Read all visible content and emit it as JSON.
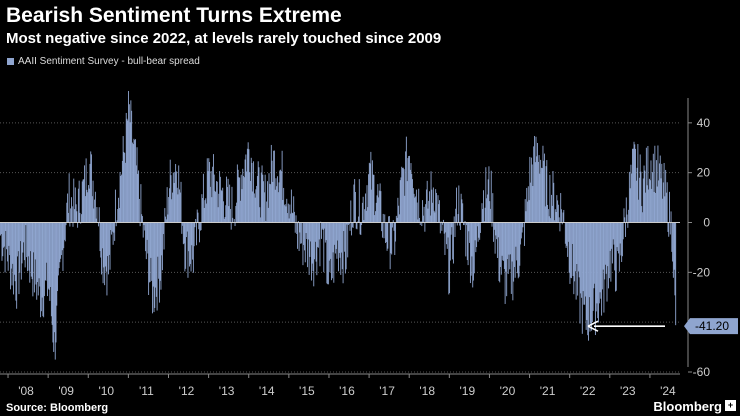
{
  "title": "Bearish Sentiment Turns Extreme",
  "subtitle": "Most negative since 2022, at levels rarely touched since 2009",
  "legend": "AAII Sentiment Survey - bull-bear spread",
  "source": "Source: Bloomberg",
  "brand": "Bloomberg",
  "brand_icon": "+",
  "colors": {
    "bar": "#8fa5cf",
    "grid": "#555555",
    "axis_text": "#cccccc",
    "annotation_bg": "#8fa5cf"
  },
  "chart_data": {
    "type": "bar",
    "title": "Bearish Sentiment Turns Extreme",
    "xlabel": "",
    "ylabel": "",
    "ylim": [
      -60,
      58
    ],
    "yticks": [
      40,
      20,
      0,
      -20,
      -40,
      -60
    ],
    "ytick_labels": [
      "40",
      "20",
      "0",
      "-20",
      "",
      "-60"
    ],
    "xtick_labels": [
      "'08",
      "'09",
      "'10",
      "'11",
      "'12",
      "'13",
      "'14",
      "'15",
      "'16",
      "'17",
      "'18",
      "'19",
      "'20",
      "'21",
      "'22",
      "'23",
      "'24"
    ],
    "x_start_year": 2007.8,
    "x_end_year": 2024.65,
    "last_value_label": "-41.20",
    "last_value": -41.2,
    "series": [
      {
        "name": "AAII Sentiment Survey - bull-bear spread",
        "anchors": [
          [
            2007.8,
            -5
          ],
          [
            2008.0,
            -15
          ],
          [
            2008.2,
            -25
          ],
          [
            2008.4,
            -10
          ],
          [
            2008.6,
            -20
          ],
          [
            2008.8,
            -30
          ],
          [
            2009.0,
            -25
          ],
          [
            2009.15,
            -50
          ],
          [
            2009.35,
            -10
          ],
          [
            2009.5,
            10
          ],
          [
            2009.7,
            5
          ],
          [
            2009.9,
            15
          ],
          [
            2010.0,
            25
          ],
          [
            2010.2,
            10
          ],
          [
            2010.35,
            -15
          ],
          [
            2010.5,
            -20
          ],
          [
            2010.7,
            10
          ],
          [
            2010.9,
            30
          ],
          [
            2011.0,
            45
          ],
          [
            2011.2,
            20
          ],
          [
            2011.4,
            -10
          ],
          [
            2011.6,
            -30
          ],
          [
            2011.8,
            -20
          ],
          [
            2012.0,
            15
          ],
          [
            2012.2,
            25
          ],
          [
            2012.4,
            -10
          ],
          [
            2012.6,
            -15
          ],
          [
            2012.8,
            5
          ],
          [
            2013.0,
            20
          ],
          [
            2013.2,
            15
          ],
          [
            2013.4,
            10
          ],
          [
            2013.6,
            5
          ],
          [
            2013.8,
            20
          ],
          [
            2014.0,
            30
          ],
          [
            2014.2,
            15
          ],
          [
            2014.4,
            10
          ],
          [
            2014.6,
            25
          ],
          [
            2014.8,
            20
          ],
          [
            2015.0,
            10
          ],
          [
            2015.2,
            -5
          ],
          [
            2015.4,
            -10
          ],
          [
            2015.6,
            -15
          ],
          [
            2015.8,
            -5
          ],
          [
            2016.0,
            -25
          ],
          [
            2016.2,
            -10
          ],
          [
            2016.4,
            -15
          ],
          [
            2016.6,
            10
          ],
          [
            2016.8,
            5
          ],
          [
            2017.0,
            20
          ],
          [
            2017.2,
            10
          ],
          [
            2017.4,
            -5
          ],
          [
            2017.6,
            -10
          ],
          [
            2017.8,
            15
          ],
          [
            2018.0,
            30
          ],
          [
            2018.2,
            10
          ],
          [
            2018.4,
            5
          ],
          [
            2018.6,
            15
          ],
          [
            2018.8,
            -5
          ],
          [
            2019.0,
            -20
          ],
          [
            2019.2,
            10
          ],
          [
            2019.4,
            -5
          ],
          [
            2019.6,
            -20
          ],
          [
            2019.8,
            10
          ],
          [
            2020.0,
            15
          ],
          [
            2020.2,
            -15
          ],
          [
            2020.4,
            -25
          ],
          [
            2020.6,
            -20
          ],
          [
            2020.8,
            -10
          ],
          [
            2021.0,
            20
          ],
          [
            2021.2,
            30
          ],
          [
            2021.4,
            15
          ],
          [
            2021.6,
            10
          ],
          [
            2021.8,
            5
          ],
          [
            2022.0,
            -15
          ],
          [
            2022.2,
            -30
          ],
          [
            2022.4,
            -40
          ],
          [
            2022.6,
            -35
          ],
          [
            2022.8,
            -30
          ],
          [
            2023.0,
            -15
          ],
          [
            2023.2,
            -20
          ],
          [
            2023.4,
            5
          ],
          [
            2023.6,
            25
          ],
          [
            2023.8,
            15
          ],
          [
            2024.0,
            25
          ],
          [
            2024.2,
            20
          ],
          [
            2024.4,
            10
          ],
          [
            2024.55,
            -5
          ],
          [
            2024.62,
            -41.2
          ]
        ]
      }
    ]
  }
}
